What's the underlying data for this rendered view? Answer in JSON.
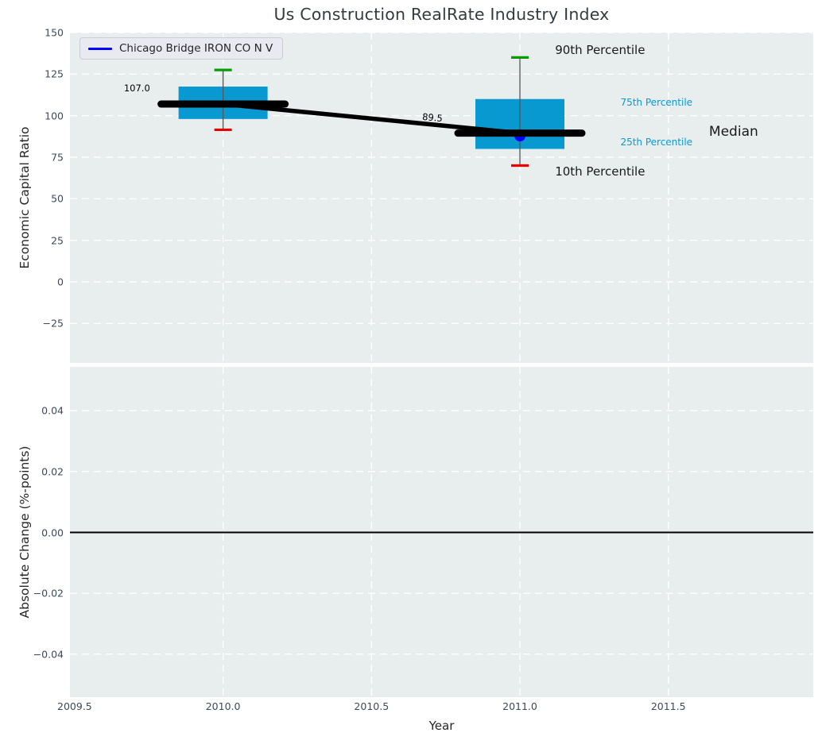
{
  "figure": {
    "title": "Us Construction RealRate Industry Index"
  },
  "legend": {
    "label": "Chicago Bridge IRON CO N V",
    "line_color": "#0000ff"
  },
  "chart_data": {
    "type": "box",
    "title": "Us Construction RealRate Industry Index",
    "x_axis": {
      "label": "Year",
      "xlim": [
        2009.49,
        2011.99
      ],
      "tick_values": [
        2009.5,
        2010.0,
        2010.5,
        2011.0,
        2011.5
      ],
      "tick_labels": [
        "2009.5",
        "2010.0",
        "2010.5",
        "2011.0",
        "2011.5"
      ]
    },
    "top_panel": {
      "ylabel": "Economic Capital Ratio",
      "ylim": [
        -48.8,
        150
      ],
      "tick_values": [
        150,
        125,
        100,
        75,
        50,
        25,
        0,
        -25
      ],
      "tick_labels": [
        "150",
        "125",
        "100",
        "75",
        "50",
        "25",
        "0",
        "−25"
      ],
      "grid": "dashed-white",
      "boxes": [
        {
          "year": 2010,
          "p10": 91.5,
          "p25": 98,
          "median": 107.0,
          "p75": 117.5,
          "p90": 127.5,
          "median_label": "107.0"
        },
        {
          "year": 2011,
          "p10": 70,
          "p25": 80,
          "median": 89.5,
          "p75": 110,
          "p90": 135,
          "median_label": "89.5"
        }
      ],
      "median_trend": [
        [
          2010,
          107.0
        ],
        [
          2011,
          89.5
        ]
      ],
      "company_points": [
        {
          "year": 2011,
          "value": 89.5
        }
      ],
      "annotations": [
        {
          "text": "107.0",
          "x": 2009.71,
          "y": 116.5,
          "size": 11.5,
          "color": "#000000",
          "rotate": 0
        },
        {
          "text": "89.5",
          "x": 2010.705,
          "y": 99,
          "size": 11.5,
          "color": "#000000",
          "rotate": 5
        },
        {
          "text": "90th Percentile",
          "x": 2011.27,
          "y": 139.5,
          "size": 15,
          "color": "#1a1a1a",
          "rotate": 0
        },
        {
          "text": "75th Percentile",
          "x": 2011.46,
          "y": 108,
          "size": 12,
          "color": "#0999d1",
          "rotate": 0
        },
        {
          "text": "Median",
          "x": 2011.72,
          "y": 90.5,
          "size": 17,
          "color": "#1a1a1a",
          "rotate": 0
        },
        {
          "text": "25th Percentile",
          "x": 2011.46,
          "y": 84,
          "size": 12,
          "color": "#0999d1",
          "rotate": 0
        },
        {
          "text": "10th Percentile",
          "x": 2011.27,
          "y": 66.5,
          "size": 15,
          "color": "#1a1a1a",
          "rotate": 0
        }
      ]
    },
    "bottom_panel": {
      "ylabel": "Absolute Change (%-points)",
      "ylim": [
        -0.0544,
        0.0544
      ],
      "tick_values": [
        0.04,
        0.02,
        0.0,
        -0.02,
        -0.04
      ],
      "tick_labels": [
        "0.04",
        "0.02",
        "0.00",
        "−0.02",
        "−0.04"
      ],
      "grid": "dashed-white",
      "zero_line": 0.0
    },
    "colors": {
      "box_fill": "#0999d1",
      "p90_cap": "#089b08",
      "p10_cap": "#ea0000",
      "whisker": "#555555",
      "median_line": "#000000",
      "company_marker": "#0000ff",
      "grid_line": "#ffffff",
      "plot_bg": "#e8edee",
      "tick_text": "#3b4a5c",
      "axis_text": "#262626",
      "zero_line": "#000000"
    }
  }
}
